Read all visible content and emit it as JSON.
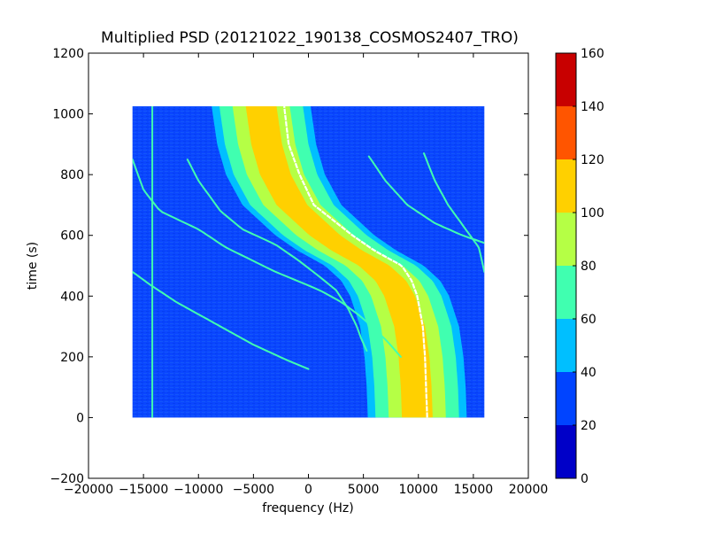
{
  "chart_data": {
    "type": "heatmap",
    "title": "Multiplied PSD (20121022_190138_COSMOS2407_TRO)",
    "xlabel": "frequency (Hz)",
    "ylabel": "time (s)",
    "xlim": [
      -20000,
      20000
    ],
    "ylim": [
      -200,
      1200
    ],
    "x_ticks": [
      -20000,
      -15000,
      -10000,
      -5000,
      0,
      5000,
      10000,
      15000,
      20000
    ],
    "x_tick_labels": [
      "−20000",
      "−15000",
      "−10000",
      "−5000",
      "0",
      "5000",
      "10000",
      "15000",
      "20000"
    ],
    "y_ticks": [
      -200,
      0,
      200,
      400,
      600,
      800,
      1000,
      1200
    ],
    "y_tick_labels": [
      "−200",
      "0",
      "200",
      "400",
      "600",
      "800",
      "1000",
      "1200"
    ],
    "data_extent": {
      "x": [
        -16000,
        16000
      ],
      "y": [
        0,
        1025
      ]
    },
    "background_level": 30,
    "colorbar": {
      "levels": [
        0,
        20,
        40,
        60,
        80,
        100,
        120,
        140,
        160
      ],
      "tick_labels": [
        "0",
        "20",
        "40",
        "60",
        "80",
        "100",
        "120",
        "140",
        "160"
      ],
      "colors": [
        "#0000c8",
        "#0044ff",
        "#00bfff",
        "#40ffb0",
        "#b5ff45",
        "#ffd000",
        "#ff5500",
        "#c80000"
      ]
    },
    "main_trace": {
      "description_levels": [
        40,
        60,
        80,
        100
      ],
      "half_widths_hz": [
        4500,
        3800,
        2600,
        1400
      ],
      "center_points": [
        {
          "t": 1025,
          "f": -4300
        },
        {
          "t": 900,
          "f": -3800
        },
        {
          "t": 800,
          "f": -3000
        },
        {
          "t": 700,
          "f": -1500
        },
        {
          "t": 600,
          "f": 1500
        },
        {
          "t": 550,
          "f": 3500
        },
        {
          "t": 500,
          "f": 6000
        },
        {
          "t": 450,
          "f": 7500
        },
        {
          "t": 400,
          "f": 8300
        },
        {
          "t": 300,
          "f": 9200
        },
        {
          "t": 200,
          "f": 9600
        },
        {
          "t": 100,
          "f": 9800
        },
        {
          "t": 0,
          "f": 9900
        }
      ],
      "white_ridge_points": [
        {
          "t": 1025,
          "f": -2200
        },
        {
          "t": 900,
          "f": -1800
        },
        {
          "t": 800,
          "f": -800
        },
        {
          "t": 700,
          "f": 500
        },
        {
          "t": 600,
          "f": 4000
        },
        {
          "t": 550,
          "f": 6000
        },
        {
          "t": 500,
          "f": 8500
        },
        {
          "t": 450,
          "f": 9400
        },
        {
          "t": 400,
          "f": 9900
        },
        {
          "t": 300,
          "f": 10400
        },
        {
          "t": 200,
          "f": 10600
        },
        {
          "t": 100,
          "f": 10700
        },
        {
          "t": 0,
          "f": 10800
        }
      ]
    },
    "secondary_traces": [
      {
        "level": 60,
        "points": [
          {
            "t": 850,
            "f": -16000
          },
          {
            "t": 750,
            "f": -15000
          },
          {
            "t": 680,
            "f": -13500
          },
          {
            "t": 620,
            "f": -10000
          },
          {
            "t": 560,
            "f": -7500
          },
          {
            "t": 480,
            "f": -3000
          },
          {
            "t": 420,
            "f": 1000
          },
          {
            "t": 380,
            "f": 3000
          },
          {
            "t": 340,
            "f": 4500
          },
          {
            "t": 300,
            "f": 5800
          },
          {
            "t": 250,
            "f": 7200
          },
          {
            "t": 200,
            "f": 8400
          }
        ]
      },
      {
        "level": 60,
        "points": [
          {
            "t": 480,
            "f": -16000
          },
          {
            "t": 440,
            "f": -14500
          },
          {
            "t": 380,
            "f": -12000
          },
          {
            "t": 300,
            "f": -8000
          }
        ]
      },
      {
        "level": 60,
        "points": [
          {
            "t": 300,
            "f": -8000
          },
          {
            "t": 240,
            "f": -5000
          },
          {
            "t": 190,
            "f": -2000
          },
          {
            "t": 160,
            "f": 0
          }
        ]
      },
      {
        "level": 60,
        "points": [
          {
            "t": 850,
            "f": -11000
          },
          {
            "t": 780,
            "f": -10000
          },
          {
            "t": 680,
            "f": -8000
          },
          {
            "t": 620,
            "f": -6000
          },
          {
            "t": 570,
            "f": -3000
          },
          {
            "t": 520,
            "f": -1000
          },
          {
            "t": 470,
            "f": 800
          },
          {
            "t": 420,
            "f": 2500
          },
          {
            "t": 360,
            "f": 3600
          },
          {
            "t": 300,
            "f": 4400
          },
          {
            "t": 260,
            "f": 4800
          },
          {
            "t": 220,
            "f": 5300
          }
        ]
      },
      {
        "level": 60,
        "points": [
          {
            "t": 860,
            "f": 5500
          },
          {
            "t": 780,
            "f": 7000
          },
          {
            "t": 700,
            "f": 9000
          },
          {
            "t": 640,
            "f": 11500
          },
          {
            "t": 600,
            "f": 14000
          },
          {
            "t": 575,
            "f": 16000
          }
        ]
      },
      {
        "level": 60,
        "points": [
          {
            "t": 870,
            "f": 10500
          },
          {
            "t": 780,
            "f": 11500
          },
          {
            "t": 700,
            "f": 12700
          },
          {
            "t": 620,
            "f": 14300
          },
          {
            "t": 560,
            "f": 15500
          },
          {
            "t": 480,
            "f": 16000
          }
        ]
      },
      {
        "level": 60,
        "points": [
          {
            "t": 1025,
            "f": -14200
          },
          {
            "t": 0,
            "f": -14200
          }
        ]
      }
    ]
  }
}
